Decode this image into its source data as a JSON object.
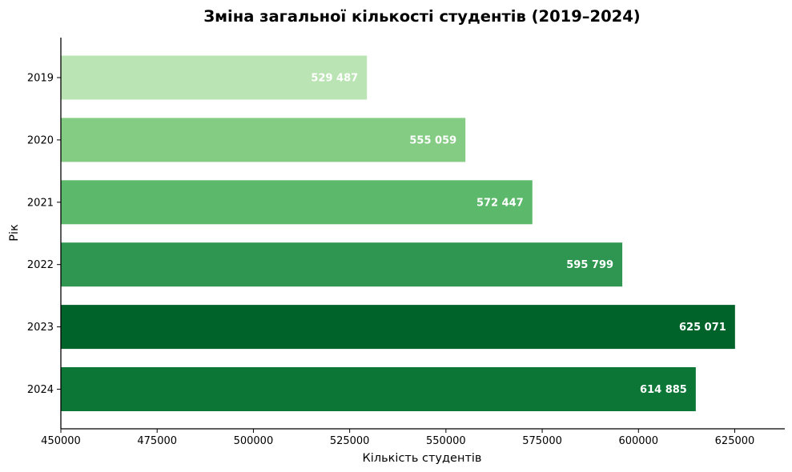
{
  "chart_data": {
    "type": "bar",
    "orientation": "horizontal",
    "title": "Зміна загальної кількості студентів (2019–2024)",
    "xlabel": "Кількість студентів",
    "ylabel": "Рік",
    "categories": [
      "2019",
      "2020",
      "2021",
      "2022",
      "2023",
      "2024"
    ],
    "values": [
      529487,
      555059,
      572447,
      595799,
      625071,
      614885
    ],
    "data_labels": [
      "529 487",
      "555 059",
      "572 447",
      "595 799",
      "625 071",
      "614 885"
    ],
    "colors": [
      "#bae4b3",
      "#84cc83",
      "#5cb86b",
      "#2e9650",
      "#00632a",
      "#0b7635"
    ],
    "xlim": [
      450000,
      638000
    ],
    "xticks": [
      450000,
      475000,
      500000,
      525000,
      550000,
      575000,
      600000,
      625000
    ],
    "xtick_labels": [
      "450000",
      "475000",
      "500000",
      "525000",
      "550000",
      "575000",
      "600000",
      "625000"
    ],
    "grid": false,
    "spines": [
      "left",
      "bottom"
    ]
  }
}
